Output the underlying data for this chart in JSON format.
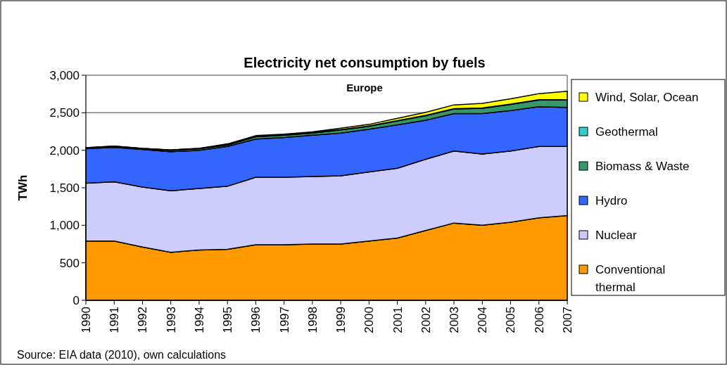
{
  "chart_data": {
    "type": "area",
    "stacked": true,
    "title": "Electricity net consumption by fuels",
    "subtitle": "Europe",
    "ylabel": "TWh",
    "categories": [
      "1990",
      "1991",
      "1992",
      "1993",
      "1994",
      "1995",
      "1996",
      "1997",
      "1998",
      "1999",
      "2000",
      "2001",
      "2002",
      "2003",
      "2004",
      "2005",
      "2006",
      "2007"
    ],
    "series": [
      {
        "name": "Conventional thermal",
        "color": "#ff9900",
        "values": [
          790,
          790,
          710,
          640,
          670,
          680,
          740,
          740,
          750,
          750,
          790,
          830,
          930,
          1030,
          1000,
          1040,
          1100,
          1130
        ]
      },
      {
        "name": "Nuclear",
        "color": "#ccccff",
        "values": [
          770,
          790,
          800,
          820,
          820,
          840,
          900,
          900,
          900,
          910,
          920,
          930,
          950,
          960,
          950,
          950,
          950,
          920
        ]
      },
      {
        "name": "Hydro",
        "color": "#3366ff",
        "values": [
          460,
          460,
          500,
          520,
          510,
          530,
          510,
          530,
          550,
          570,
          570,
          580,
          520,
          500,
          540,
          540,
          530,
          520
        ]
      },
      {
        "name": "Biomass & Waste",
        "color": "#339966",
        "values": [
          10,
          10,
          10,
          20,
          20,
          20,
          30,
          30,
          30,
          40,
          40,
          50,
          60,
          60,
          70,
          80,
          90,
          100
        ]
      },
      {
        "name": "Geothermal",
        "color": "#33cccc",
        "values": [
          5,
          5,
          5,
          5,
          5,
          5,
          5,
          5,
          5,
          5,
          5,
          5,
          5,
          5,
          5,
          5,
          5,
          6
        ]
      },
      {
        "name": "Wind, Solar, Ocean",
        "color": "#ffff00",
        "values": [
          0,
          0,
          0,
          0,
          0,
          10,
          10,
          10,
          10,
          20,
          20,
          30,
          40,
          50,
          60,
          70,
          80,
          110
        ]
      }
    ],
    "ylim": [
      0,
      3000
    ],
    "yticks": [
      0,
      500,
      {
        "value": 1000,
        "label": "1,000"
      },
      {
        "value": 1500,
        "label": "1,500"
      },
      {
        "value": 2000,
        "label": "2,000"
      },
      {
        "value": 2500,
        "label": "2,500"
      },
      {
        "value": 3000,
        "label": "3,000"
      }
    ],
    "grid": "y",
    "legend": "right",
    "annotations": [
      "Source: EIA data (2010), own calculations"
    ]
  }
}
